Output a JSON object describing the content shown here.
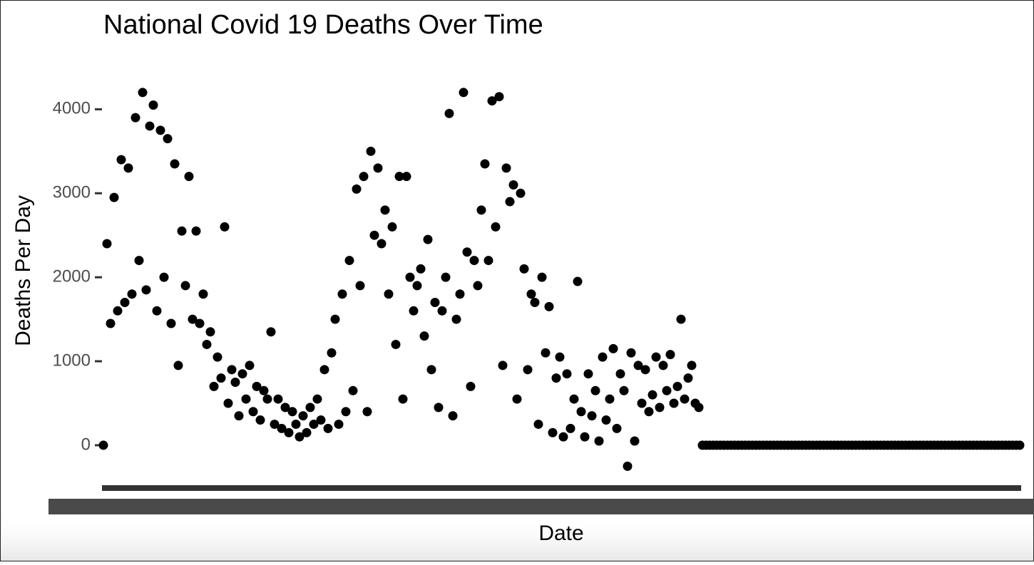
{
  "chart_data": {
    "type": "scatter",
    "title": "National Covid 19 Deaths Over Time",
    "x_label": "Date",
    "y_label": "Deaths Per Day",
    "color": "#000000",
    "ylim": [
      -340,
      4580
    ],
    "yticks": [
      0,
      1000,
      2000,
      3000,
      4000
    ],
    "grid": false,
    "categories": [
      null,
      null,
      null,
      null,
      null,
      null,
      null,
      null,
      null,
      null,
      null,
      null,
      null,
      null,
      null,
      null,
      null,
      null,
      null,
      null,
      null,
      null,
      null,
      null,
      null,
      null,
      null,
      null,
      null,
      null,
      null,
      null,
      null,
      null,
      null,
      null,
      null,
      null,
      null,
      null,
      null,
      null,
      null,
      null,
      null,
      null,
      null,
      null,
      null,
      null,
      null,
      null,
      null,
      null,
      null,
      null,
      null,
      null,
      null,
      null,
      null,
      null,
      null,
      null,
      null,
      null,
      null,
      null,
      null,
      null,
      null,
      null,
      null,
      null,
      null,
      null,
      null,
      null,
      null,
      null,
      null,
      null,
      null,
      null,
      null,
      null,
      null,
      null,
      null,
      null,
      null,
      null,
      null,
      null,
      null,
      null,
      null,
      null,
      null,
      null,
      null,
      null,
      null,
      null,
      null,
      null,
      null,
      null,
      null,
      null,
      null,
      null,
      null,
      null,
      null,
      null,
      null,
      null,
      null,
      null,
      null,
      null,
      null,
      null,
      null,
      null,
      null,
      null,
      null,
      null,
      null,
      null,
      null,
      null,
      null,
      null,
      null,
      null,
      null,
      null,
      null,
      null,
      null,
      null,
      null,
      null,
      null,
      null,
      null,
      null,
      null,
      null,
      null,
      null,
      null,
      null,
      null,
      null,
      null,
      null,
      null,
      null,
      null,
      null,
      null,
      null,
      null,
      null,
      null,
      null,
      null,
      null,
      null,
      null,
      null,
      null,
      null,
      null,
      null,
      null,
      null,
      null,
      null,
      null,
      null,
      null,
      null,
      null,
      null,
      null,
      null,
      null,
      null,
      null,
      null,
      null,
      null,
      null,
      null,
      null,
      null,
      null,
      null,
      null,
      null,
      null,
      null,
      null,
      null,
      null,
      null,
      null,
      null,
      null,
      null,
      null,
      null,
      null,
      null,
      null,
      null,
      null,
      null,
      null,
      null,
      null,
      null,
      null,
      null,
      null,
      null,
      null,
      null,
      null,
      null,
      null,
      null,
      null,
      null,
      null,
      null,
      null,
      null,
      null,
      null,
      null,
      null,
      null,
      null,
      null,
      null,
      null,
      null,
      null,
      null,
      null,
      null,
      null
    ],
    "values": [
      0,
      2400,
      1450,
      2950,
      1600,
      3400,
      1700,
      3300,
      1800,
      3900,
      2200,
      4200,
      1850,
      3800,
      4050,
      1600,
      3750,
      2000,
      3650,
      1450,
      3350,
      950,
      2550,
      1900,
      3200,
      1500,
      2550,
      1450,
      1800,
      1200,
      1350,
      700,
      1050,
      800,
      2600,
      500,
      900,
      750,
      350,
      850,
      550,
      950,
      400,
      700,
      300,
      650,
      550,
      1350,
      250,
      550,
      200,
      450,
      150,
      400,
      250,
      100,
      350,
      150,
      450,
      250,
      550,
      300,
      900,
      200,
      1100,
      1500,
      250,
      1800,
      400,
      2200,
      650,
      3050,
      1900,
      3200,
      400,
      3500,
      2500,
      3300,
      2400,
      2800,
      1800,
      2600,
      1200,
      3200,
      550,
      3200,
      2000,
      1600,
      1900,
      2100,
      1300,
      2450,
      900,
      1700,
      450,
      1600,
      2000,
      3950,
      350,
      1500,
      1800,
      4200,
      2300,
      700,
      2200,
      1900,
      2800,
      3350,
      2200,
      4100,
      2600,
      4150,
      950,
      3300,
      2900,
      3100,
      550,
      3000,
      2100,
      900,
      1800,
      1700,
      250,
      2000,
      1100,
      1650,
      150,
      800,
      1050,
      100,
      850,
      200,
      550,
      1950,
      400,
      100,
      850,
      350,
      650,
      50,
      1050,
      300,
      550,
      1150,
      200,
      850,
      650,
      -250,
      1100,
      50,
      950,
      500,
      900,
      400,
      600,
      1050,
      450,
      950,
      650,
      1080,
      500,
      700,
      1500,
      550,
      800,
      950,
      500,
      450,
      0,
      0,
      0,
      0,
      0,
      0,
      0,
      0,
      0,
      0,
      0,
      0,
      0,
      0,
      0,
      0,
      0,
      0,
      0,
      0,
      0,
      0,
      0,
      0,
      0,
      0,
      0,
      0,
      0,
      0,
      0,
      0,
      0,
      0,
      0,
      0,
      0,
      0,
      0,
      0,
      0,
      0,
      0,
      0,
      0,
      0,
      0,
      0,
      0,
      0,
      0,
      0,
      0,
      0,
      0,
      0,
      0,
      0,
      0,
      0,
      0,
      0,
      0,
      0,
      0,
      0,
      0,
      0,
      0,
      0,
      0,
      0,
      0,
      0,
      0,
      0,
      0,
      0,
      0,
      0,
      0,
      0,
      0,
      0,
      0,
      0,
      0,
      0,
      0,
      0
    ]
  }
}
